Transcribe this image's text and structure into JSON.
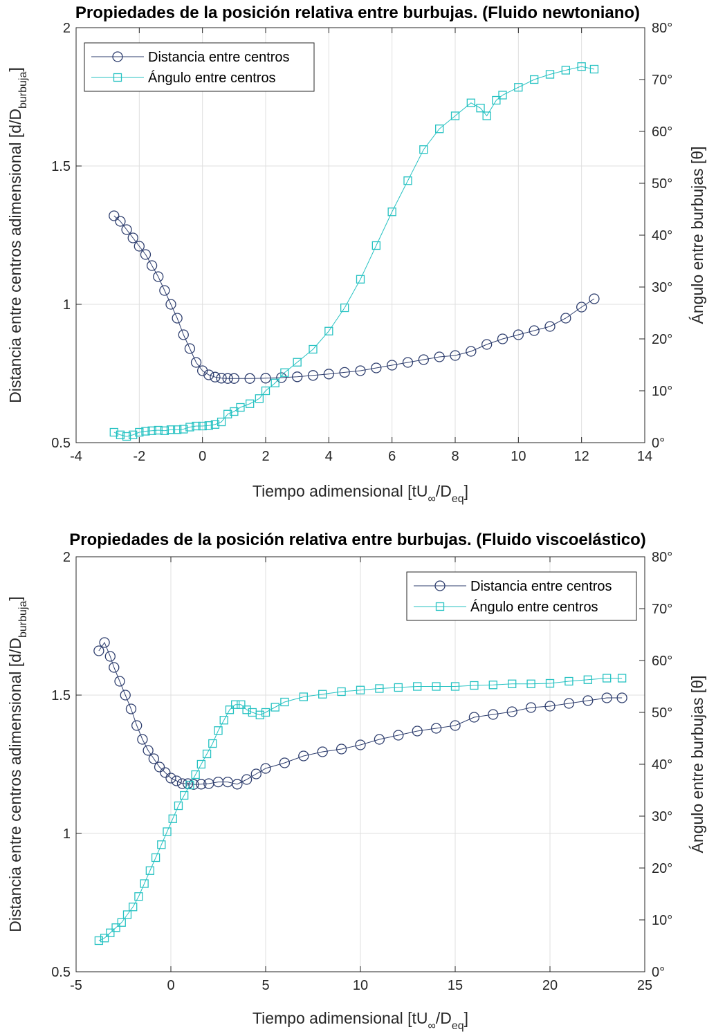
{
  "chart_data": [
    {
      "type": "line",
      "title": "Propiedades de la posición relativa entre burbujas. (Fluido newtoniano)",
      "xlabel": {
        "main": "Tiempo adimensional [tU",
        "sub1": "∞",
        "mid": "/D",
        "sub2": "eq",
        "end": "]"
      },
      "ylabel_left": {
        "main": "Distancia entre centros adimensional [d/D",
        "sub": "burbuja",
        "end": "]"
      },
      "ylabel_right": "Ángulo entre burbujas [θ]",
      "xlim": [
        -4,
        14
      ],
      "ylim_left": [
        0.5,
        2
      ],
      "ylim_right": [
        0,
        80
      ],
      "xticks": [
        -4,
        -2,
        0,
        2,
        4,
        6,
        8,
        10,
        12,
        14
      ],
      "xtick_labels": [
        "-4",
        "-2",
        "0",
        "2",
        "4",
        "6",
        "8",
        "10",
        "12",
        "14"
      ],
      "yticks_left": [
        0.5,
        1,
        1.5,
        2
      ],
      "ytick_labels_left": [
        "0.5",
        "1",
        "1.5",
        "2"
      ],
      "yticks_right": [
        0,
        10,
        20,
        30,
        40,
        50,
        60,
        70,
        80
      ],
      "ytick_labels_right": [
        "0°",
        "10°",
        "20°",
        "30°",
        "40°",
        "50°",
        "60°",
        "70°",
        "80°"
      ],
      "grid": true,
      "legend_position": "top-left",
      "series": [
        {
          "name": "Distancia entre centros",
          "axis": "left",
          "marker": "circle",
          "color": "#2e3e6e",
          "x": [
            -2.8,
            -2.6,
            -2.4,
            -2.2,
            -2.0,
            -1.8,
            -1.6,
            -1.4,
            -1.2,
            -1.0,
            -0.8,
            -0.6,
            -0.4,
            -0.2,
            0.0,
            0.2,
            0.4,
            0.6,
            0.8,
            1.0,
            1.5,
            2.0,
            2.5,
            3.0,
            3.5,
            4.0,
            4.5,
            5.0,
            5.5,
            6.0,
            6.5,
            7.0,
            7.5,
            8.0,
            8.5,
            9.0,
            9.5,
            10.0,
            10.5,
            11.0,
            11.5,
            12.0,
            12.4
          ],
          "y": [
            1.32,
            1.3,
            1.27,
            1.24,
            1.21,
            1.18,
            1.14,
            1.1,
            1.05,
            1.0,
            0.95,
            0.89,
            0.84,
            0.79,
            0.76,
            0.745,
            0.737,
            0.733,
            0.732,
            0.732,
            0.732,
            0.733,
            0.735,
            0.738,
            0.743,
            0.748,
            0.754,
            0.76,
            0.77,
            0.78,
            0.79,
            0.8,
            0.81,
            0.815,
            0.83,
            0.855,
            0.875,
            0.89,
            0.905,
            0.92,
            0.95,
            0.99,
            1.02
          ]
        },
        {
          "name": "Ángulo entre centros",
          "axis": "right",
          "marker": "square",
          "color": "#26c2c2",
          "x": [
            -2.8,
            -2.6,
            -2.4,
            -2.2,
            -2.0,
            -1.8,
            -1.6,
            -1.4,
            -1.2,
            -1.0,
            -0.8,
            -0.6,
            -0.4,
            -0.2,
            0.0,
            0.2,
            0.4,
            0.6,
            0.8,
            1.0,
            1.2,
            1.5,
            1.8,
            2.0,
            2.3,
            2.6,
            3.0,
            3.5,
            4.0,
            4.5,
            5.0,
            5.5,
            6.0,
            6.5,
            7.0,
            7.5,
            8.0,
            8.5,
            8.8,
            9.0,
            9.3,
            9.5,
            10.0,
            10.5,
            11.0,
            11.5,
            12.0,
            12.4
          ],
          "y": [
            2.0,
            1.5,
            1.2,
            1.5,
            2.0,
            2.2,
            2.3,
            2.4,
            2.3,
            2.5,
            2.5,
            2.6,
            3.0,
            3.2,
            3.2,
            3.3,
            3.5,
            4.0,
            5.5,
            6.0,
            6.8,
            7.5,
            8.5,
            10.0,
            11.5,
            13.5,
            15.5,
            18.0,
            21.5,
            26.0,
            31.5,
            38.0,
            44.5,
            50.5,
            56.5,
            60.5,
            63.0,
            65.5,
            64.5,
            63.0,
            66.0,
            67.0,
            68.5,
            70.0,
            71.0,
            71.8,
            72.5,
            72.0
          ]
        }
      ]
    },
    {
      "type": "line",
      "title": "Propiedades de la posición relativa entre burbujas. (Fluido viscoelástico)",
      "xlabel": {
        "main": "Tiempo adimensional [tU",
        "sub1": "∞",
        "mid": "/D",
        "sub2": "eq",
        "end": "]"
      },
      "ylabel_left": {
        "main": "Distancia entre centros adimensional [d/D",
        "sub": "burbuja",
        "end": "]"
      },
      "ylabel_right": "Ángulo entre burbujas [θ]",
      "xlim": [
        -5,
        25
      ],
      "ylim_left": [
        0.5,
        2
      ],
      "ylim_right": [
        0,
        80
      ],
      "xticks": [
        -5,
        0,
        5,
        10,
        15,
        20,
        25
      ],
      "xtick_labels": [
        "-5",
        "0",
        "5",
        "10",
        "15",
        "20",
        "25"
      ],
      "yticks_left": [
        0.5,
        1,
        1.5,
        2
      ],
      "ytick_labels_left": [
        "0.5",
        "1",
        "1.5",
        "2"
      ],
      "yticks_right": [
        0,
        10,
        20,
        30,
        40,
        50,
        60,
        70,
        80
      ],
      "ytick_labels_right": [
        "0°",
        "10°",
        "20°",
        "30°",
        "40°",
        "50°",
        "60°",
        "70°",
        "80°"
      ],
      "grid": true,
      "legend_position": "top-right",
      "series": [
        {
          "name": "Distancia entre centros",
          "axis": "left",
          "marker": "circle",
          "color": "#2e3e6e",
          "x": [
            -3.8,
            -3.5,
            -3.2,
            -3.0,
            -2.7,
            -2.4,
            -2.1,
            -1.8,
            -1.5,
            -1.2,
            -0.9,
            -0.6,
            -0.3,
            0.0,
            0.3,
            0.6,
            0.9,
            1.2,
            1.6,
            2.0,
            2.5,
            3.0,
            3.5,
            4.0,
            4.5,
            5.0,
            6.0,
            7.0,
            8.0,
            9.0,
            10.0,
            11.0,
            12.0,
            13.0,
            14.0,
            15.0,
            16.0,
            17.0,
            18.0,
            19.0,
            20.0,
            21.0,
            22.0,
            23.0,
            23.8
          ],
          "y": [
            1.66,
            1.69,
            1.64,
            1.6,
            1.55,
            1.5,
            1.45,
            1.39,
            1.34,
            1.3,
            1.27,
            1.24,
            1.22,
            1.2,
            1.19,
            1.18,
            1.18,
            1.177,
            1.178,
            1.18,
            1.186,
            1.186,
            1.178,
            1.195,
            1.215,
            1.235,
            1.255,
            1.28,
            1.295,
            1.305,
            1.32,
            1.34,
            1.355,
            1.37,
            1.38,
            1.39,
            1.42,
            1.43,
            1.44,
            1.455,
            1.46,
            1.47,
            1.48,
            1.49,
            1.49
          ]
        },
        {
          "name": "Ángulo entre centros",
          "axis": "right",
          "marker": "square",
          "color": "#26c2c2",
          "x": [
            -3.8,
            -3.5,
            -3.2,
            -2.9,
            -2.6,
            -2.3,
            -2.0,
            -1.7,
            -1.4,
            -1.1,
            -0.8,
            -0.5,
            -0.2,
            0.1,
            0.4,
            0.7,
            1.0,
            1.3,
            1.6,
            1.9,
            2.2,
            2.5,
            2.8,
            3.1,
            3.4,
            3.7,
            4.0,
            4.3,
            4.7,
            5.0,
            5.5,
            6.0,
            7.0,
            8.0,
            9.0,
            10.0,
            11.0,
            12.0,
            13.0,
            14.0,
            15.0,
            16.0,
            17.0,
            18.0,
            19.0,
            20.0,
            21.0,
            22.0,
            23.0,
            23.8
          ],
          "y": [
            6.0,
            6.5,
            7.5,
            8.5,
            9.5,
            11.0,
            12.5,
            14.5,
            17.0,
            19.5,
            22.0,
            24.5,
            27.0,
            29.5,
            32.0,
            34.0,
            36.0,
            38.0,
            40.0,
            42.0,
            44.0,
            46.5,
            48.5,
            50.5,
            51.5,
            51.5,
            50.5,
            50.0,
            49.5,
            50.0,
            51.0,
            52.0,
            53.0,
            53.5,
            54.0,
            54.3,
            54.6,
            54.8,
            55.0,
            55.0,
            55.0,
            55.2,
            55.3,
            55.5,
            55.5,
            55.6,
            56.0,
            56.3,
            56.6,
            56.6
          ]
        }
      ]
    }
  ]
}
